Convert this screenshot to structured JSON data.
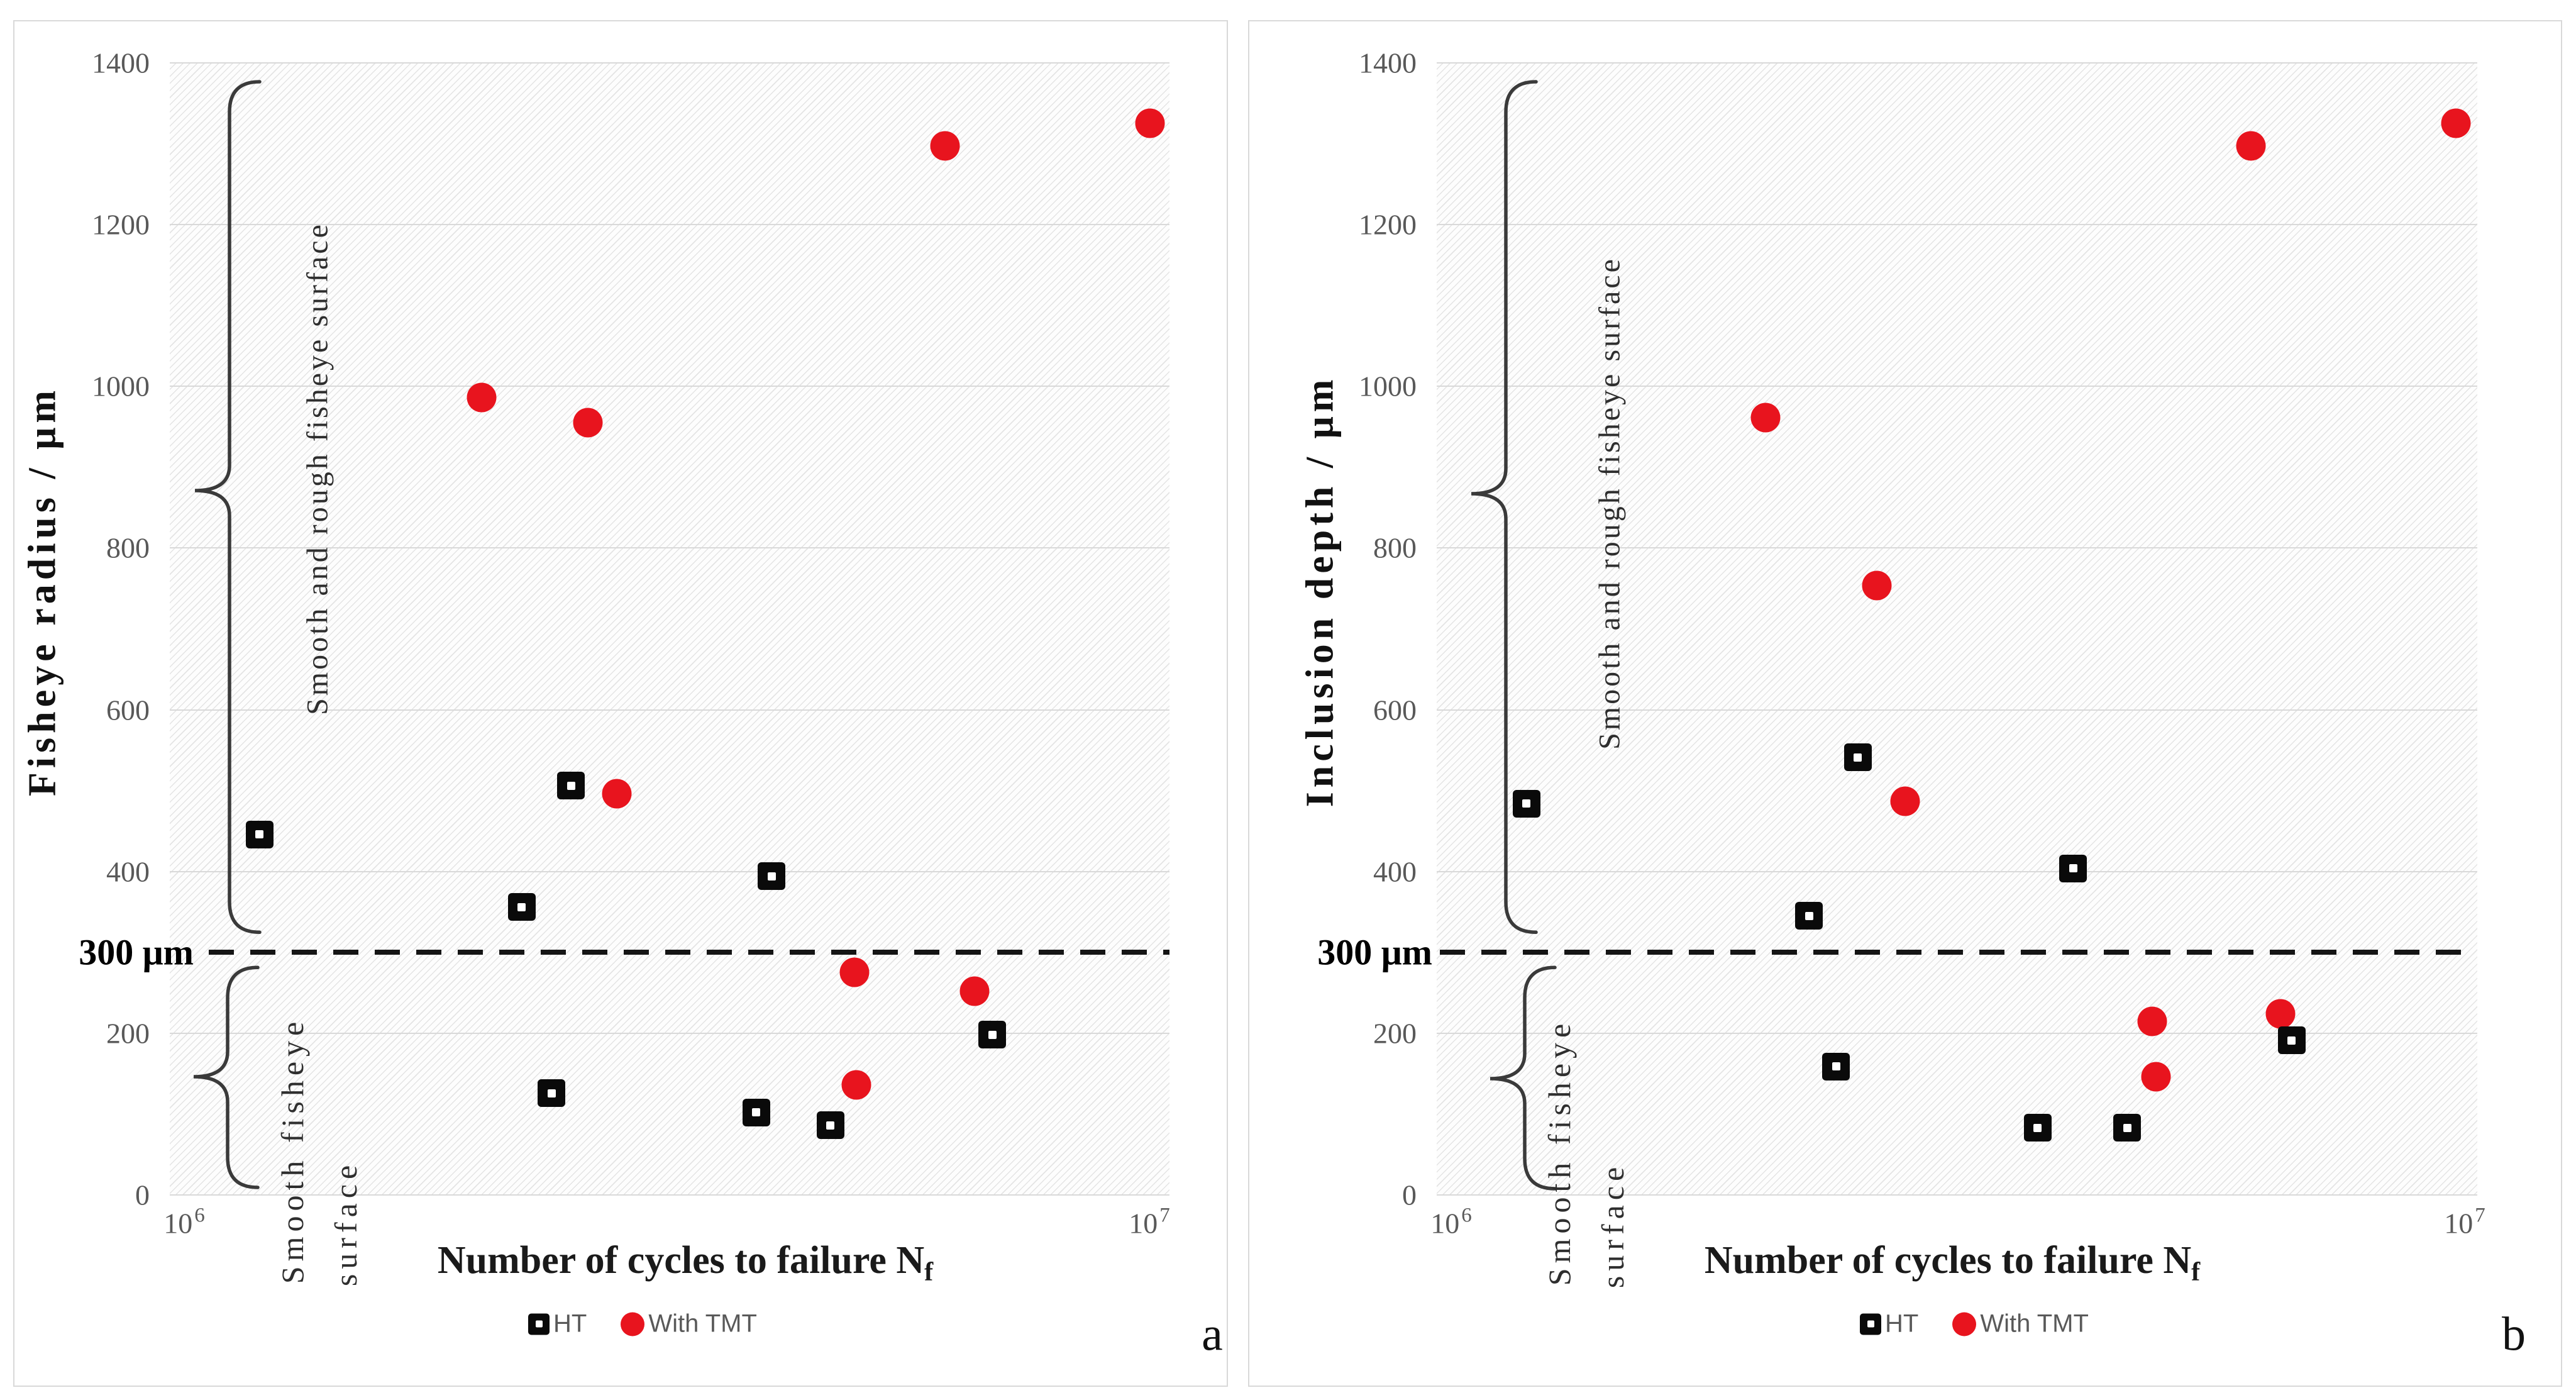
{
  "colors": {
    "accent_red": "#e8141e",
    "marker_black": "#0a0a0a",
    "grid": "#d9d9d9",
    "axis_text": "#595959",
    "legend_text": "#595959",
    "hatch": "#e4e4e4",
    "panel_border": "#d9d9d9",
    "brace": "#3a3a3a",
    "threshold_line": "#151515"
  },
  "chart_data": [
    {
      "type": "scatter",
      "panel_letter": "a",
      "ylabel": "Fisheye radius / μm",
      "xlabel_main": "Number of cycles to failure N",
      "xlabel_sub": "f",
      "x_scale": "log",
      "xlim": [
        1000000,
        10000000
      ],
      "ylim": [
        0,
        1400
      ],
      "yticks": [
        0,
        200,
        400,
        600,
        800,
        1000,
        1200,
        1400
      ],
      "x_ticks": [
        {
          "base": "10",
          "exp": "6"
        },
        {
          "base": "10",
          "exp": "7"
        }
      ],
      "grid": "horizontal",
      "legend_position": "bottom-center",
      "annotations": {
        "threshold_label": "300 μm",
        "threshold_value": 300,
        "upper_region_label": "Smooth and rough fisheye surface",
        "lower_region_label_line1": "Smooth fisheye",
        "lower_region_label_line2": "surface"
      },
      "series": [
        {
          "name": "HT",
          "marker": "open-square",
          "color": "#0a0a0a",
          "points": [
            [
              1230000,
              446
            ],
            [
              2250000,
              356
            ],
            [
              2410000,
              126
            ],
            [
              2520000,
              506
            ],
            [
              3860000,
              102
            ],
            [
              4000000,
              394
            ],
            [
              4580000,
              86
            ],
            [
              6650000,
              198
            ]
          ]
        },
        {
          "name": "With TMT",
          "marker": "circle",
          "color": "#e8141e",
          "points": [
            [
              2050000,
              986
            ],
            [
              2620000,
              955
            ],
            [
              2800000,
              496
            ],
            [
              4840000,
              275
            ],
            [
              4860000,
              136
            ],
            [
              5960000,
              1297
            ],
            [
              6380000,
              252
            ],
            [
              9560000,
              1325
            ]
          ]
        }
      ]
    },
    {
      "type": "scatter",
      "panel_letter": "b",
      "ylabel": "Inclusion depth / μm",
      "xlabel_main": "Number of cycles to failure N",
      "xlabel_sub": "f",
      "x_scale": "log",
      "xlim": [
        1000000,
        10000000
      ],
      "ylim": [
        0,
        1400
      ],
      "yticks": [
        0,
        200,
        400,
        600,
        800,
        1000,
        1200,
        1400
      ],
      "x_ticks": [
        {
          "base": "10",
          "exp": "6"
        },
        {
          "base": "10",
          "exp": "7"
        }
      ],
      "grid": "horizontal",
      "legend_position": "bottom-center",
      "annotations": {
        "threshold_label": "300 μm",
        "threshold_value": 300,
        "upper_region_label": "Smooth and rough fisheye surface",
        "lower_region_label_line1": "Smooth fisheye",
        "lower_region_label_line2": "surface"
      },
      "series": [
        {
          "name": "HT",
          "marker": "open-square",
          "color": "#0a0a0a",
          "points": [
            [
              1220000,
              484
            ],
            [
              2280000,
              345
            ],
            [
              2420000,
              159
            ],
            [
              2540000,
              541
            ],
            [
              3780000,
              83
            ],
            [
              4090000,
              404
            ],
            [
              4610000,
              83
            ],
            [
              6630000,
              191
            ]
          ]
        },
        {
          "name": "With TMT",
          "marker": "circle",
          "color": "#e8141e",
          "points": [
            [
              2070000,
              961
            ],
            [
              2650000,
              754
            ],
            [
              2820000,
              487
            ],
            [
              4870000,
              215
            ],
            [
              4910000,
              146
            ],
            [
              6060000,
              1297
            ],
            [
              6470000,
              224
            ],
            [
              9540000,
              1325
            ]
          ]
        }
      ]
    }
  ]
}
